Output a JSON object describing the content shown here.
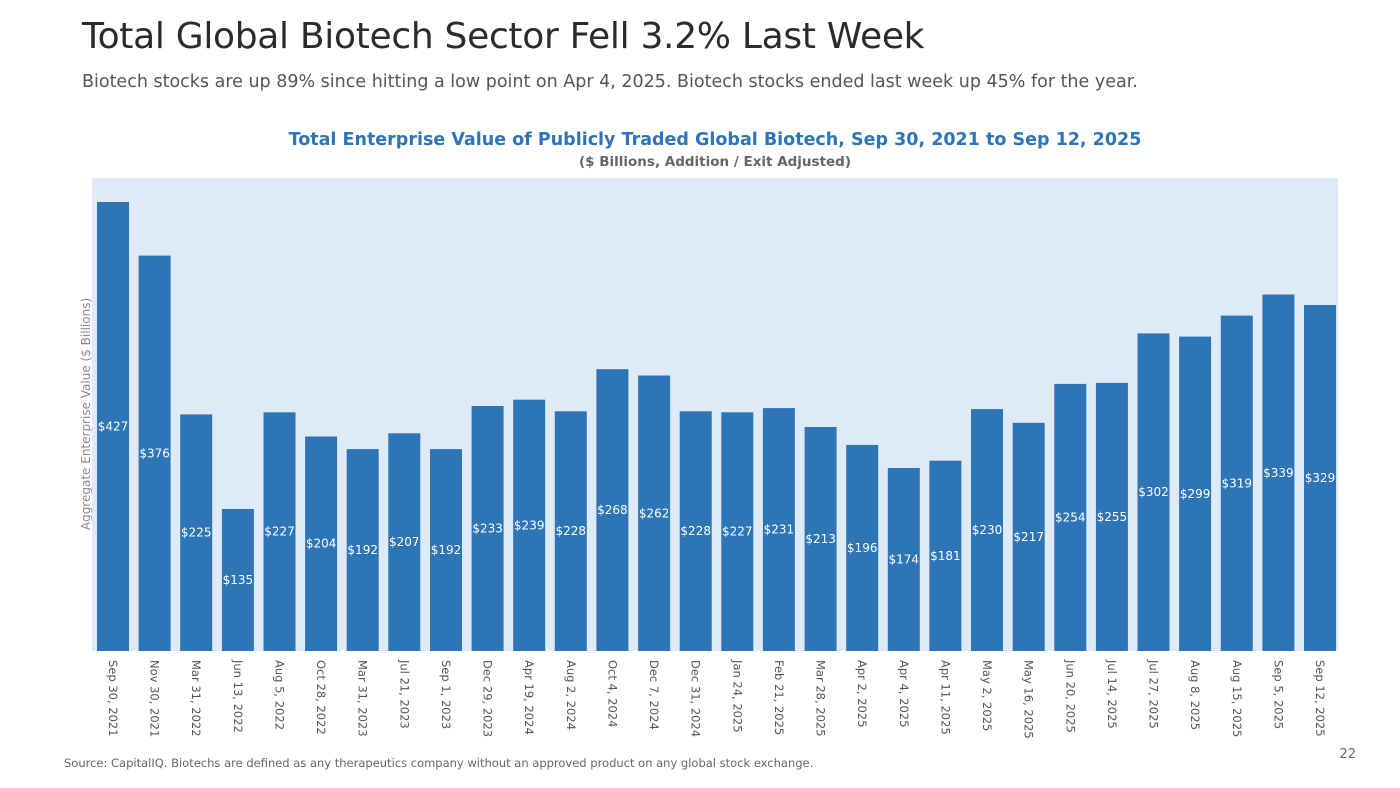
{
  "header": {
    "title": "Total Global Biotech Sector Fell 3.2% Last Week",
    "subtitle": "Biotech stocks are up 89% since hitting a low point on Apr 4, 2025. Biotech stocks ended last week up 45% for the year."
  },
  "footer": {
    "source": "Source: CapitalIQ. Biotechs are defined as any therapeutics company without an approved product on any global stock exchange.",
    "page_number": "22"
  },
  "chart_data": {
    "type": "bar",
    "title": "Total Enterprise Value of Publicly Traded Global Biotech, Sep 30, 2021 to Sep 12, 2025",
    "subtitle": "($ Billions, Addition / Exit Adjusted)",
    "xlabel": "",
    "ylabel": "Aggregate Enterprise Value ($ Billions)",
    "ylim": [
      0,
      450
    ],
    "grid": false,
    "bar_color": "#2e75b6",
    "plot_background": "#deeaf6",
    "categories": [
      "Sep 30, 2021",
      "Nov 30, 2021",
      "Mar 31, 2022",
      "Jun 13, 2022",
      "Aug 5, 2022",
      "Oct 28, 2022",
      "Mar 31, 2023",
      "Jul 21, 2023",
      "Sep 1, 2023",
      "Dec 29, 2023",
      "Apr 19, 2024",
      "Aug 2, 2024",
      "Oct 4, 2024",
      "Dec 7, 2024",
      "Dec 31, 2024",
      "Jan 24, 2025",
      "Feb 21, 2025",
      "Mar 28, 2025",
      "Apr 2, 2025",
      "Apr 4, 2025",
      "Apr 11, 2025",
      "May 2, 2025",
      "May 16, 2025",
      "Jun 20, 2025",
      "Jul 14, 2025",
      "Jul 27, 2025",
      "Aug 8, 2025",
      "Aug 15, 2025",
      "Sep 5, 2025",
      "Sep 12, 2025"
    ],
    "values": [
      427,
      376,
      225,
      135,
      227,
      204,
      192,
      207,
      192,
      233,
      239,
      228,
      268,
      262,
      228,
      227,
      231,
      213,
      196,
      174,
      181,
      230,
      217,
      254,
      255,
      302,
      299,
      319,
      339,
      329
    ],
    "data_labels": [
      "$427",
      "$376",
      "$225",
      "$135",
      "$227",
      "$204",
      "$192",
      "$207",
      "$192",
      "$233",
      "$239",
      "$228",
      "$268",
      "$262",
      "$228",
      "$227",
      "$231",
      "$213",
      "$196",
      "$174",
      "$181",
      "$230",
      "$217",
      "$254",
      "$255",
      "$302",
      "$299",
      "$319",
      "$339",
      "$329"
    ]
  }
}
